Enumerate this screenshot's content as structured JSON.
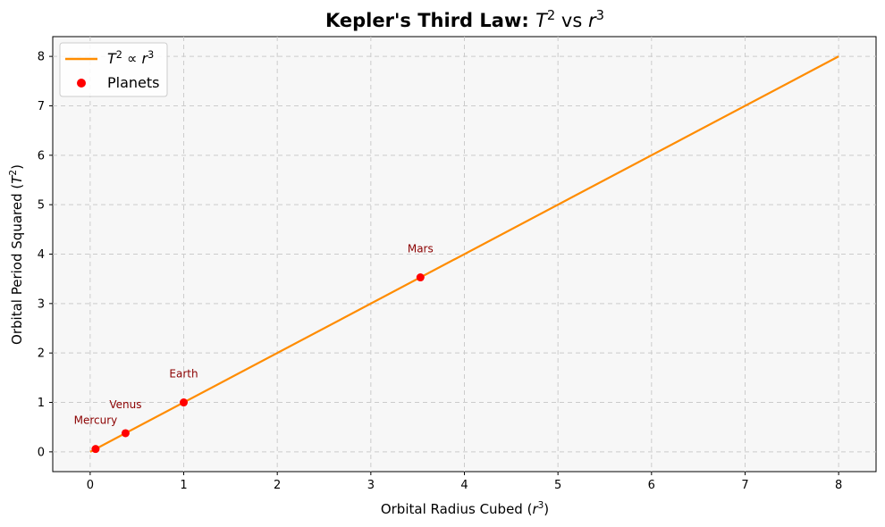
{
  "chart_data": {
    "type": "line",
    "title": {
      "bold": "Kepler's Third Law: ",
      "math": [
        [
          "T",
          "2"
        ],
        " vs ",
        [
          "r",
          "3"
        ]
      ]
    },
    "xlabel": "Orbital Radius Cubed",
    "xlabel_math": [
      "r",
      "3"
    ],
    "ylabel": "Orbital Period Squared",
    "ylabel_math": [
      "T",
      "2"
    ],
    "xlim": [
      -0.4,
      8.4
    ],
    "ylim": [
      -0.4,
      8.4
    ],
    "xticks": [
      0,
      1,
      2,
      3,
      4,
      5,
      6,
      7,
      8
    ],
    "yticks": [
      0,
      1,
      2,
      3,
      4,
      5,
      6,
      7,
      8
    ],
    "grid": true,
    "legend_position": "top-left",
    "series": [
      {
        "name": "T² ∝ r³",
        "kind": "line",
        "color": "#ff8c00",
        "x": [
          0,
          8
        ],
        "y": [
          0,
          8
        ]
      },
      {
        "name": "Planets",
        "kind": "scatter",
        "color": "#ff0000",
        "points": [
          {
            "label": "Mercury",
            "x": 0.058,
            "y": 0.058
          },
          {
            "label": "Venus",
            "x": 0.378,
            "y": 0.378
          },
          {
            "label": "Earth",
            "x": 1.0,
            "y": 1.0
          },
          {
            "label": "Mars",
            "x": 3.53,
            "y": 3.53
          }
        ]
      }
    ],
    "annotation_color": "#8b0000",
    "plot_background": "#f7f7f7"
  }
}
